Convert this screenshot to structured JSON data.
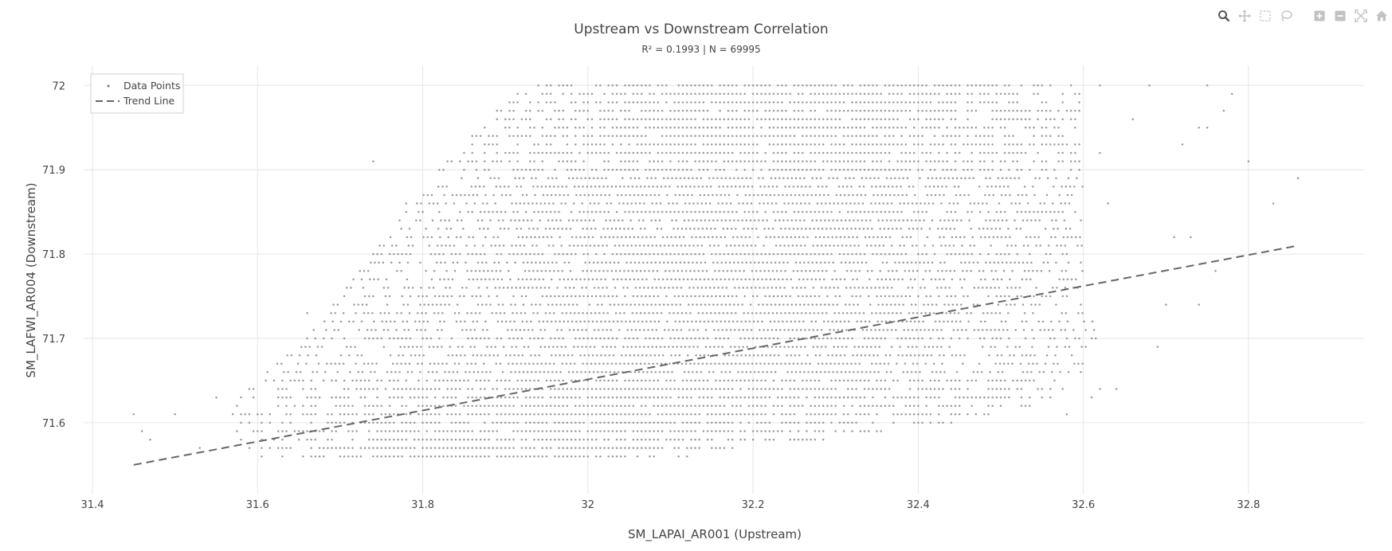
{
  "modebar": {
    "buttons": [
      "zoom-icon",
      "pan-icon",
      "box-select-icon",
      "lasso-select-icon",
      "zoom-in-icon",
      "zoom-out-icon",
      "autoscale-icon",
      "reset-axes-icon"
    ]
  },
  "chart_data": {
    "type": "scatter",
    "title": "Upstream vs Downstream Correlation",
    "subtitle": "R² = 0.1993 | N = 69995",
    "xlabel": "SM_LAPAI_AR001 (Upstream)",
    "ylabel": "SM_LAFWI_AR004 (Downstream)",
    "xlim": [
      31.4,
      32.94
    ],
    "ylim": [
      71.53,
      72.005
    ],
    "x_ticks": [
      "31.4",
      "31.6",
      "31.8",
      "32",
      "32.2",
      "32.4",
      "32.6",
      "32.8"
    ],
    "x_tick_values": [
      31.4,
      31.6,
      31.8,
      32.0,
      32.2,
      32.4,
      32.6,
      32.8
    ],
    "y_ticks": [
      "71.6",
      "71.7",
      "71.8",
      "71.9",
      "72"
    ],
    "y_tick_values": [
      71.6,
      71.7,
      71.8,
      71.9,
      72.0
    ],
    "grid": true,
    "legend_position": "top-left",
    "series": [
      {
        "name": "Data Points",
        "kind": "markers",
        "color": "#888888",
        "n": 69995,
        "y_step": 0.01,
        "x_step": 0.005,
        "envelope": {
          "y": [
            71.56,
            71.58,
            71.6,
            71.62,
            71.65,
            71.7,
            71.75,
            71.8,
            71.85,
            71.9,
            71.95,
            72.0
          ],
          "x_min": [
            31.6,
            31.58,
            31.57,
            31.57,
            31.6,
            31.66,
            31.7,
            31.74,
            31.78,
            31.82,
            31.87,
            31.92
          ],
          "x_max": [
            32.12,
            32.3,
            32.45,
            32.55,
            32.6,
            32.62,
            32.6,
            32.6,
            32.6,
            32.6,
            32.6,
            32.6
          ]
        },
        "outliers": [
          [
            31.45,
            71.61
          ],
          [
            31.46,
            71.59
          ],
          [
            31.47,
            71.58
          ],
          [
            31.5,
            71.61
          ],
          [
            31.53,
            71.57
          ],
          [
            31.55,
            71.63
          ],
          [
            31.74,
            71.91
          ],
          [
            31.66,
            71.73
          ],
          [
            31.78,
            71.86
          ],
          [
            32.7,
            71.74
          ],
          [
            32.72,
            71.93
          ],
          [
            32.74,
            71.95
          ],
          [
            32.75,
            71.95
          ],
          [
            32.73,
            71.82
          ],
          [
            32.74,
            71.74
          ],
          [
            32.76,
            71.78
          ],
          [
            32.78,
            71.99
          ],
          [
            32.8,
            71.91
          ],
          [
            32.83,
            71.86
          ],
          [
            32.86,
            71.89
          ],
          [
            32.62,
            71.64
          ],
          [
            32.64,
            71.64
          ],
          [
            32.62,
            71.92
          ],
          [
            32.62,
            72.0
          ],
          [
            32.68,
            72.0
          ],
          [
            32.69,
            71.69
          ],
          [
            32.71,
            71.82
          ],
          [
            32.77,
            71.97
          ],
          [
            32.75,
            72.0
          ],
          [
            32.63,
            71.86
          ],
          [
            32.66,
            71.96
          ],
          [
            32.58,
            71.61
          ],
          [
            32.61,
            71.63
          ]
        ]
      },
      {
        "name": "Trend Line",
        "kind": "line",
        "dash": "dash",
        "color": "#666666",
        "x": [
          31.45,
          32.86
        ],
        "y": [
          71.55,
          71.81
        ]
      }
    ]
  }
}
